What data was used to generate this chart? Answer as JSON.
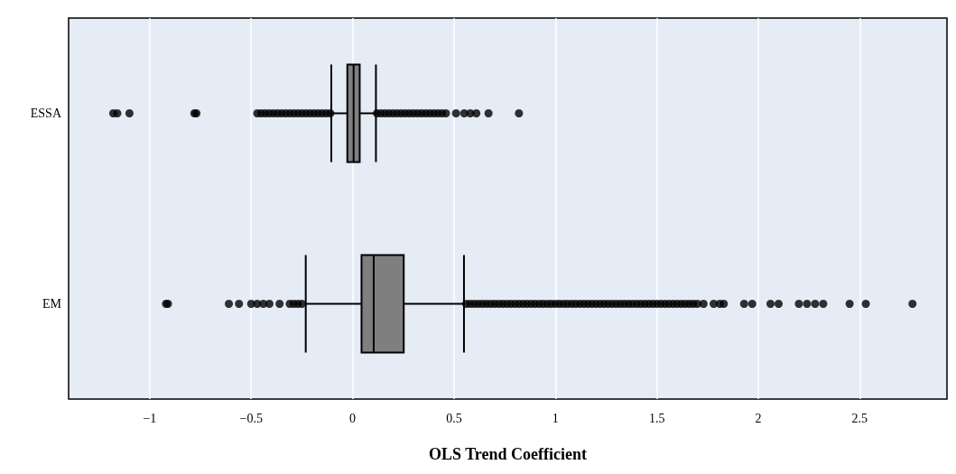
{
  "chart_data": {
    "type": "box",
    "orientation": "horizontal",
    "xlabel": "OLS Trend Coefficient",
    "categories": [
      "ESSA",
      "EM"
    ],
    "color": "#7f7f7f",
    "marker": "circle",
    "grid": "x",
    "xlim": [
      -1.4,
      2.93
    ],
    "xticks": [
      {
        "value": -1,
        "label": "−1"
      },
      {
        "value": -0.5,
        "label": "−0.5"
      },
      0,
      0.5,
      1,
      1.5,
      2,
      2.5
    ],
    "boxes": [
      {
        "low": -0.105,
        "q1": -0.026,
        "median": 0.005,
        "q3": 0.035,
        "high": 0.115,
        "outliers": [
          -1.18,
          -1.16,
          -1.1,
          -0.78,
          -0.77,
          -0.47,
          -0.45,
          -0.43,
          -0.41,
          -0.39,
          -0.37,
          -0.35,
          -0.33,
          -0.31,
          -0.29,
          -0.27,
          -0.25,
          -0.23,
          -0.21,
          -0.19,
          -0.17,
          -0.15,
          -0.13,
          -0.11,
          0.12,
          0.14,
          0.16,
          0.18,
          0.2,
          0.22,
          0.24,
          0.26,
          0.28,
          0.3,
          0.32,
          0.34,
          0.36,
          0.38,
          0.4,
          0.42,
          0.44,
          0.46,
          0.51,
          0.55,
          0.58,
          0.61,
          0.67,
          0.82
        ]
      },
      {
        "low": -0.231,
        "q1": 0.044,
        "median": 0.104,
        "q3": 0.252,
        "high": 0.549,
        "outliers": [
          -0.92,
          -0.91,
          -0.61,
          -0.56,
          -0.5,
          -0.47,
          -0.44,
          -0.41,
          -0.36,
          -0.31,
          -0.29,
          -0.27,
          -0.25,
          0.56,
          0.58,
          0.6,
          0.62,
          0.64,
          0.66,
          0.68,
          0.7,
          0.72,
          0.74,
          0.76,
          0.78,
          0.8,
          0.82,
          0.84,
          0.86,
          0.88,
          0.9,
          0.92,
          0.94,
          0.96,
          0.98,
          1,
          1.02,
          1.04,
          1.06,
          1.08,
          1.1,
          1.12,
          1.14,
          1.16,
          1.18,
          1.2,
          1.22,
          1.24,
          1.26,
          1.28,
          1.3,
          1.32,
          1.34,
          1.36,
          1.38,
          1.4,
          1.42,
          1.44,
          1.46,
          1.48,
          1.5,
          1.52,
          1.54,
          1.56,
          1.58,
          1.6,
          1.62,
          1.64,
          1.66,
          1.68,
          1.7,
          1.73,
          1.78,
          1.81,
          1.83,
          1.93,
          1.97,
          2.06,
          2.1,
          2.2,
          2.24,
          2.28,
          2.32,
          2.45,
          2.53,
          2.76
        ]
      }
    ]
  }
}
